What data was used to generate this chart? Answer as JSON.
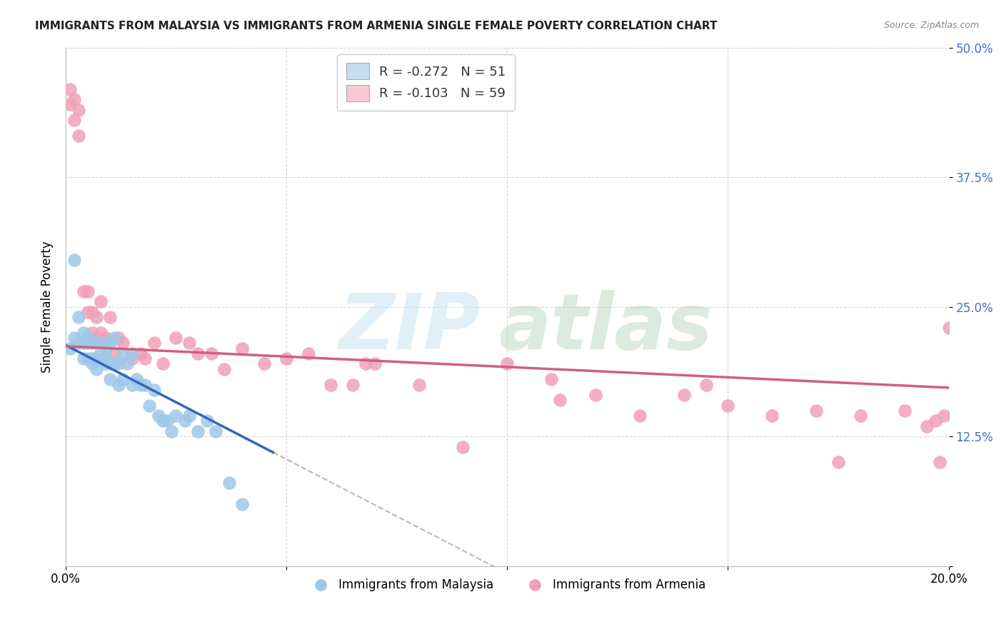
{
  "title": "IMMIGRANTS FROM MALAYSIA VS IMMIGRANTS FROM ARMENIA SINGLE FEMALE POVERTY CORRELATION CHART",
  "source": "Source: ZipAtlas.com",
  "ylabel": "Single Female Poverty",
  "series1_label": "Immigrants from Malaysia",
  "series2_label": "Immigrants from Armenia",
  "series1_color": "#9ec8e8",
  "series2_color": "#f0a0b8",
  "trendline1_color": "#3565c0",
  "trendline2_color": "#d06080",
  "trendline1_dash_color": "#b8b8b8",
  "legend1_label": "R = -0.272   N = 51",
  "legend2_label": "R = -0.103   N = 59",
  "legend1_fc": "#c5ddf0",
  "legend2_fc": "#f8c8d4",
  "malaysia_x": [
    0.001,
    0.002,
    0.002,
    0.003,
    0.003,
    0.004,
    0.004,
    0.004,
    0.005,
    0.005,
    0.005,
    0.006,
    0.006,
    0.006,
    0.007,
    0.007,
    0.007,
    0.008,
    0.008,
    0.009,
    0.009,
    0.009,
    0.01,
    0.01,
    0.01,
    0.011,
    0.011,
    0.012,
    0.012,
    0.013,
    0.013,
    0.014,
    0.015,
    0.015,
    0.016,
    0.017,
    0.018,
    0.019,
    0.02,
    0.021,
    0.022,
    0.023,
    0.024,
    0.025,
    0.027,
    0.028,
    0.03,
    0.032,
    0.034,
    0.037,
    0.04
  ],
  "malaysia_y": [
    0.21,
    0.295,
    0.22,
    0.24,
    0.215,
    0.215,
    0.2,
    0.225,
    0.22,
    0.215,
    0.2,
    0.215,
    0.2,
    0.195,
    0.215,
    0.2,
    0.19,
    0.215,
    0.205,
    0.21,
    0.2,
    0.195,
    0.215,
    0.195,
    0.18,
    0.22,
    0.195,
    0.195,
    0.175,
    0.205,
    0.18,
    0.195,
    0.205,
    0.175,
    0.18,
    0.175,
    0.175,
    0.155,
    0.17,
    0.145,
    0.14,
    0.14,
    0.13,
    0.145,
    0.14,
    0.145,
    0.13,
    0.14,
    0.13,
    0.08,
    0.06
  ],
  "armenia_x": [
    0.001,
    0.001,
    0.002,
    0.002,
    0.003,
    0.003,
    0.004,
    0.005,
    0.005,
    0.006,
    0.006,
    0.007,
    0.007,
    0.008,
    0.008,
    0.009,
    0.009,
    0.01,
    0.011,
    0.012,
    0.013,
    0.015,
    0.017,
    0.018,
    0.02,
    0.022,
    0.025,
    0.028,
    0.03,
    0.033,
    0.036,
    0.04,
    0.045,
    0.05,
    0.055,
    0.06,
    0.065,
    0.07,
    0.08,
    0.09,
    0.1,
    0.11,
    0.12,
    0.13,
    0.14,
    0.15,
    0.16,
    0.17,
    0.18,
    0.19,
    0.195,
    0.197,
    0.198,
    0.199,
    0.2,
    0.112,
    0.068,
    0.145,
    0.175
  ],
  "armenia_y": [
    0.445,
    0.46,
    0.43,
    0.45,
    0.415,
    0.44,
    0.265,
    0.265,
    0.245,
    0.245,
    0.225,
    0.24,
    0.22,
    0.255,
    0.225,
    0.215,
    0.22,
    0.24,
    0.205,
    0.22,
    0.215,
    0.2,
    0.205,
    0.2,
    0.215,
    0.195,
    0.22,
    0.215,
    0.205,
    0.205,
    0.19,
    0.21,
    0.195,
    0.2,
    0.205,
    0.175,
    0.175,
    0.195,
    0.175,
    0.115,
    0.195,
    0.18,
    0.165,
    0.145,
    0.165,
    0.155,
    0.145,
    0.15,
    0.145,
    0.15,
    0.135,
    0.14,
    0.1,
    0.145,
    0.23,
    0.16,
    0.195,
    0.175,
    0.1
  ],
  "xlim": [
    0.0,
    0.2
  ],
  "ylim": [
    0.0,
    0.5
  ],
  "xticks": [
    0.0,
    0.05,
    0.1,
    0.15,
    0.2
  ],
  "xticklabels": [
    "0.0%",
    "",
    "",
    "",
    "20.0%"
  ],
  "yticks": [
    0.0,
    0.125,
    0.25,
    0.375,
    0.5
  ],
  "yticklabels": [
    "",
    "12.5%",
    "25.0%",
    "37.5%",
    "50.0%"
  ],
  "malaysia_trend_x_end": 0.047,
  "armenia_trend_x_end": 0.2,
  "trendline1_slope": -2.2,
  "trendline1_intercept": 0.213,
  "trendline2_slope": -0.2,
  "trendline2_intercept": 0.212
}
